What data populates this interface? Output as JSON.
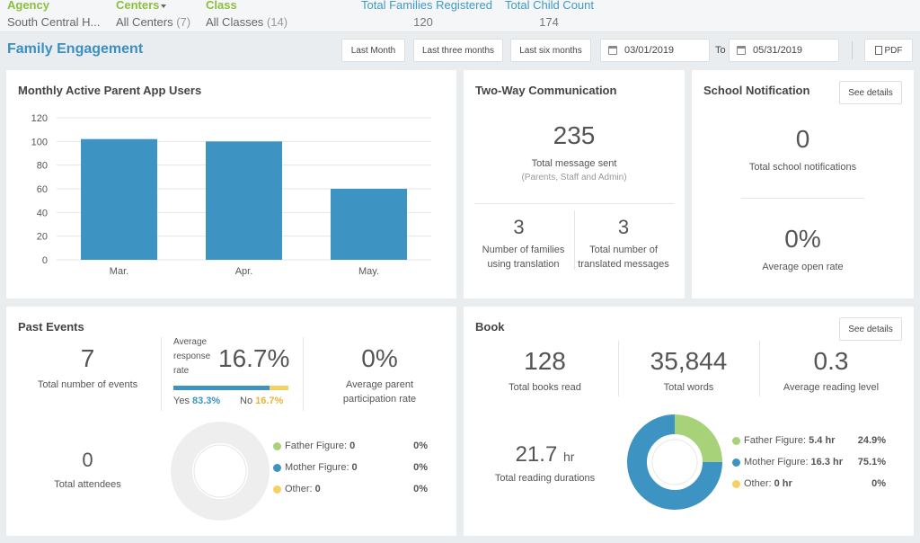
{
  "filters": {
    "agency": {
      "label": "Agency",
      "value": "South Central H..."
    },
    "centers": {
      "label": "Centers",
      "value": "All Centers",
      "count": "(7)"
    },
    "class": {
      "label": "Class",
      "value": "All Classes",
      "count": "(14)"
    }
  },
  "stats": {
    "families": {
      "label": "Total Families Registered",
      "value": "120"
    },
    "children": {
      "label": "Total Child Count",
      "value": "174"
    }
  },
  "toolbar": {
    "title": "Family Engagement",
    "last_month": "Last Month",
    "last_three": "Last three months",
    "last_six": "Last six months",
    "start_date": "03/01/2019",
    "to_label": "To",
    "end_date": "05/31/2019",
    "pdf": "PDF"
  },
  "app_users": {
    "title": "Monthly Active Parent App Users",
    "chart_data": {
      "type": "bar",
      "categories": [
        "Mar.",
        "Apr.",
        "May."
      ],
      "values": [
        102,
        100,
        60
      ],
      "title": "Monthly Active Parent App Users",
      "xlabel": "",
      "ylabel": "",
      "ylim": [
        0,
        120
      ],
      "yticks": [
        0,
        20,
        40,
        60,
        80,
        100,
        120
      ],
      "grid": true,
      "color": "#3d94c2"
    }
  },
  "two_way": {
    "title": "Two-Way Communication",
    "total_value": "235",
    "total_label": "Total message sent",
    "total_sub": "(Parents, Staff and Admin)",
    "families_value": "3",
    "families_label_1": "Number of families",
    "families_label_2": "using translation",
    "translated_value": "3",
    "translated_label_1": "Total number of",
    "translated_label_2": "translated messages"
  },
  "school": {
    "title": "School Notification",
    "details": "See details",
    "total_value": "0",
    "total_label": "Total school notifications",
    "open_value": "0%",
    "open_label": "Average open rate"
  },
  "past_events": {
    "title": "Past Events",
    "events_value": "7",
    "events_label": "Total number of events",
    "response_label_1": "Average",
    "response_label_2": "response",
    "response_label_3": "rate",
    "response_value": "16.7%",
    "yes_label": "Yes",
    "yes_value": "83.3%",
    "no_label": "No",
    "no_value": "16.7%",
    "yes_fraction": 0.833,
    "participation_value": "0%",
    "participation_label_1": "Average parent",
    "participation_label_2": "participation rate",
    "attendees_value": "0",
    "attendees_label": "Total attendees",
    "legend": [
      {
        "label": "Father Figure:",
        "value": "0",
        "pct": "0%",
        "color": "#a8d27a"
      },
      {
        "label": "Mother Figure:",
        "value": "0",
        "pct": "0%",
        "color": "#3d94c2"
      },
      {
        "label": "Other:",
        "value": "0",
        "pct": "0%",
        "color": "#f5d163"
      }
    ]
  },
  "book": {
    "title": "Book",
    "details": "See details",
    "books_value": "128",
    "books_label": "Total books read",
    "words_value": "35,844",
    "words_label": "Total words",
    "level_value": "0.3",
    "level_label": "Average reading level",
    "duration_value": "21.7",
    "duration_unit": "hr",
    "duration_label": "Total reading durations",
    "legend": [
      {
        "label": "Father Figure:",
        "value": "5.4 hr",
        "pct": "24.9%",
        "color": "#a8d27a",
        "fraction": 0.249
      },
      {
        "label": "Mother Figure:",
        "value": "16.3 hr",
        "pct": "75.1%",
        "color": "#3d94c2",
        "fraction": 0.751
      },
      {
        "label": "Other:",
        "value": "0 hr",
        "pct": "0%",
        "color": "#f5d163",
        "fraction": 0
      }
    ]
  }
}
